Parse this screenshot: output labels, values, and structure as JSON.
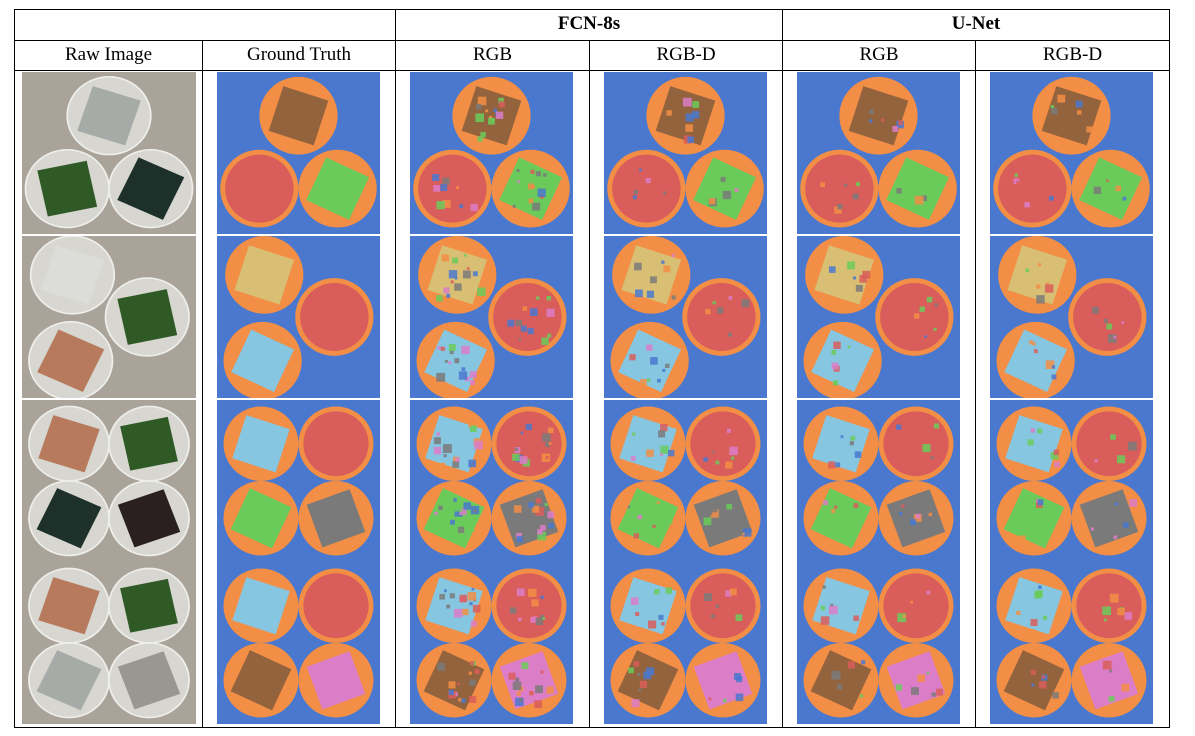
{
  "table": {
    "group_headers": [
      "FCN-8s",
      "U-Net"
    ],
    "column_headers": [
      "Raw Image",
      "Ground Truth",
      "RGB",
      "RGB-D",
      "RGB",
      "RGB-D"
    ]
  },
  "colors": {
    "background": "#4a78cf",
    "dish": "#f28e45",
    "grass": "#6acb5b",
    "turf_red": "#d95d5a",
    "tile_brown": "#93633e",
    "tile_yellow": "#d9bf73",
    "tile_lightblue": "#86c6e0",
    "rubber_gray": "#7a7a7a",
    "gravel_pink": "#dc7dc8"
  },
  "rows": [
    {
      "name": "scene-1",
      "raw": [
        {
          "material": "metal",
          "pos": "top-center"
        },
        {
          "material": "grass",
          "pos": "bottom-left"
        },
        {
          "material": "foam",
          "pos": "bottom-right"
        }
      ],
      "labels": [
        {
          "class": "tile_brown",
          "pos": "top-center"
        },
        {
          "class": "turf_red",
          "pos": "bottom-left"
        },
        {
          "class": "grass",
          "pos": "bottom-right"
        }
      ]
    },
    {
      "name": "scene-2",
      "raw": [
        {
          "material": "aluminum",
          "pos": "top-left"
        },
        {
          "material": "grass",
          "pos": "mid-right"
        },
        {
          "material": "cork",
          "pos": "bottom-left"
        }
      ],
      "labels": [
        {
          "class": "tile_yellow",
          "pos": "top-left"
        },
        {
          "class": "turf_red",
          "pos": "mid-right"
        },
        {
          "class": "tile_lightblue",
          "pos": "bottom-left"
        }
      ]
    },
    {
      "name": "scene-3",
      "raw": [
        {
          "material": "cork",
          "pos": "top-left"
        },
        {
          "material": "grass",
          "pos": "top-right"
        },
        {
          "material": "foam",
          "pos": "bottom-left"
        },
        {
          "material": "rubber",
          "pos": "bottom-right"
        }
      ],
      "labels": [
        {
          "class": "tile_lightblue",
          "pos": "top-left"
        },
        {
          "class": "turf_red",
          "pos": "top-right"
        },
        {
          "class": "grass",
          "pos": "bottom-left"
        },
        {
          "class": "rubber_gray",
          "pos": "bottom-right"
        }
      ]
    },
    {
      "name": "scene-4",
      "raw": [
        {
          "material": "cork",
          "pos": "top-left"
        },
        {
          "material": "grass",
          "pos": "top-right"
        },
        {
          "material": "metal",
          "pos": "bottom-left"
        },
        {
          "material": "gravel",
          "pos": "bottom-right"
        }
      ],
      "labels": [
        {
          "class": "tile_lightblue",
          "pos": "top-left"
        },
        {
          "class": "turf_red",
          "pos": "top-right"
        },
        {
          "class": "tile_brown",
          "pos": "bottom-left"
        },
        {
          "class": "gravel_pink",
          "pos": "bottom-right"
        }
      ]
    }
  ]
}
